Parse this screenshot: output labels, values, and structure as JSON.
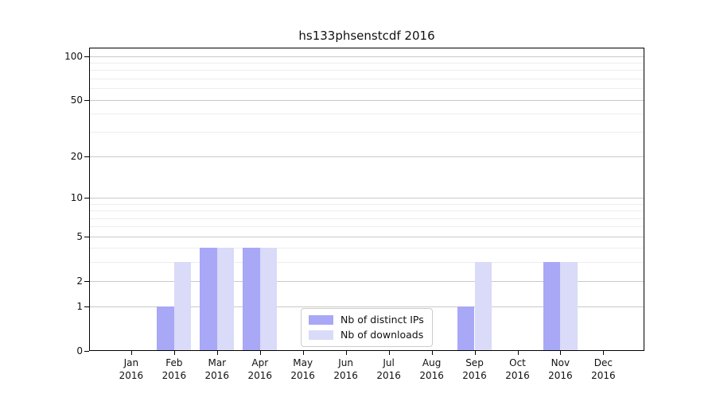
{
  "chart_data": {
    "type": "bar",
    "title": "hs133phsenstcdf 2016",
    "categories": [
      "Jan",
      "Feb",
      "Mar",
      "Apr",
      "May",
      "Jun",
      "Jul",
      "Aug",
      "Sep",
      "Oct",
      "Nov",
      "Dec"
    ],
    "year_label": "2016",
    "series": [
      {
        "name": "Nb of distinct IPs",
        "color": "#a8a8f6",
        "values": [
          0,
          1,
          4,
          4,
          0,
          0,
          0,
          0,
          1,
          0,
          3,
          0
        ]
      },
      {
        "name": "Nb of downloads",
        "color": "#dadaf9",
        "values": [
          0,
          3,
          4,
          4,
          0,
          0,
          0,
          0,
          3,
          0,
          3,
          0
        ]
      }
    ],
    "yscale": "log10(1+x)",
    "ylim": [
      0,
      115
    ],
    "y_major_ticks": [
      0,
      1,
      2,
      5,
      10,
      20,
      50,
      100
    ],
    "y_minor_ticks": [
      3,
      4,
      6,
      7,
      8,
      9,
      30,
      40,
      60,
      70,
      80,
      90
    ],
    "grid": true,
    "legend_position": "lower-center"
  }
}
